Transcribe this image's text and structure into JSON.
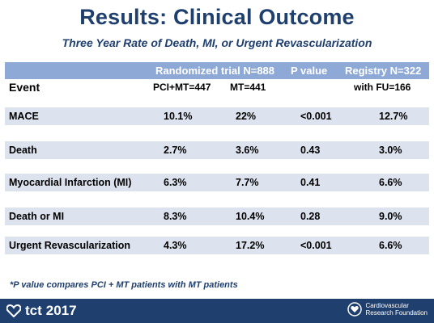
{
  "slide": {
    "title": "Results: Clinical Outcome",
    "subtitle": "Three Year Rate of Death, MI, or Urgent Revascularization"
  },
  "table": {
    "header1": {
      "randomized": "Randomized trial N=888",
      "pvalue": "P value",
      "registry": "Registry  N=322"
    },
    "header2": {
      "event": "Event",
      "pci_mt": "PCI+MT=447",
      "mt": "MT=441",
      "registry_fu": "with FU=166"
    },
    "rows": [
      {
        "label": "MACE",
        "pci_mt": "10.1%",
        "mt": "22%",
        "p": "<0.001",
        "registry": "12.7%"
      },
      {
        "label": "Death",
        "pci_mt": "2.7%",
        "mt": "3.6%",
        "p": "0.43",
        "registry": "3.0%"
      },
      {
        "label": "Myocardial Infarction (MI)",
        "pci_mt": "6.3%",
        "mt": "7.7%",
        "p": "0.41",
        "registry": "6.6%"
      },
      {
        "label": "Death or MI",
        "pci_mt": "8.3%",
        "mt": "10.4%",
        "p": "0.28",
        "registry": "9.0%"
      },
      {
        "label": "Urgent Revascularization",
        "pci_mt": "4.3%",
        "mt": "17.2%",
        "p": "<0.001",
        "registry": "6.6%"
      }
    ]
  },
  "footnote": "*P value compares PCI + MT patients with MT patients",
  "footer": {
    "tct_label": "tct",
    "tct_year": "2017",
    "crf_line1": "Cardiovascular",
    "crf_line2": "Research Foundation"
  },
  "colors": {
    "navy": "#1f3f6e",
    "header_blue": "#8fa9d6",
    "row_band": "#dde3ee"
  }
}
